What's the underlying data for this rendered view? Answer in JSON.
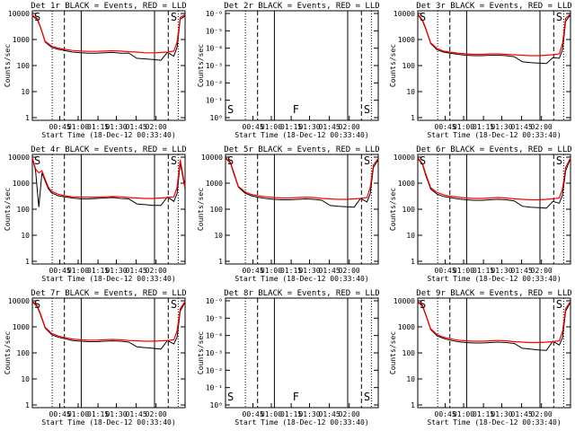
{
  "figure": {
    "xtick_labels": [
      "00:45",
      "01:00",
      "01:15",
      "01:30",
      "01:45",
      "02:00"
    ],
    "xlabel": "Start Time (18-Dec-12 00:33:40)",
    "ylabel": "Counts/sec",
    "colors": {
      "events": "#000000",
      "lld": "#ff0000",
      "axes": "#000000",
      "background": "#ffffff"
    }
  },
  "chart_data": [
    {
      "type": "line",
      "title": "Det 1r BLACK = Events, RED = LLD",
      "scale": "log",
      "ytick_labels": [
        "1",
        "10",
        "100",
        "1000",
        "10000"
      ],
      "ylim": [
        1,
        10000
      ],
      "x_minutes": [
        0,
        3,
        5,
        8,
        12,
        16,
        20,
        25,
        30,
        35,
        40,
        45,
        50,
        55,
        60,
        65,
        70,
        75,
        80,
        84,
        88,
        90,
        92,
        95
      ],
      "series": [
        {
          "name": "Events",
          "color": "#000000",
          "values": [
            8000,
            6000,
            3000,
            800,
            500,
            420,
            380,
            330,
            310,
            300,
            300,
            310,
            320,
            300,
            300,
            190,
            180,
            170,
            160,
            320,
            230,
            500,
            6000,
            8000
          ]
        },
        {
          "name": "LLD",
          "color": "#ff0000",
          "values": [
            8500,
            6500,
            3200,
            850,
            560,
            470,
            420,
            380,
            360,
            350,
            350,
            360,
            370,
            360,
            340,
            330,
            310,
            310,
            320,
            330,
            360,
            800,
            7000,
            9000
          ]
        }
      ],
      "markers": [
        {
          "label": "S",
          "pos": "left"
        },
        {
          "label": "S",
          "pos": "right"
        }
      ]
    },
    {
      "type": "line",
      "title": "Det 2r BLACK = Events, RED = LLD",
      "scale": "log",
      "ytick_labels": [
        "10⁰",
        "10⁻¹",
        "10⁻²",
        "10⁻³",
        "10⁻⁴",
        "10⁻⁵",
        "10⁻⁶"
      ],
      "ylim": [
        1e-06,
        1
      ],
      "x_minutes": [],
      "series": [],
      "markers": [
        {
          "label": "S",
          "pos": "left"
        },
        {
          "label": "F",
          "pos": "mid"
        },
        {
          "label": "S",
          "pos": "right"
        }
      ]
    },
    {
      "type": "line",
      "title": "Det 3r BLACK = Events, RED = LLD",
      "scale": "log",
      "ytick_labels": [
        "1",
        "10",
        "100",
        "1000",
        "10000"
      ],
      "ylim": [
        1,
        10000
      ],
      "x_minutes": [
        0,
        3,
        5,
        8,
        12,
        16,
        20,
        25,
        30,
        35,
        40,
        45,
        50,
        55,
        60,
        65,
        70,
        75,
        80,
        84,
        88,
        90,
        92,
        95
      ],
      "series": [
        {
          "name": "Events",
          "color": "#000000",
          "values": [
            9000,
            5000,
            2500,
            700,
            400,
            330,
            300,
            270,
            250,
            240,
            240,
            250,
            250,
            240,
            220,
            140,
            130,
            125,
            120,
            200,
            190,
            400,
            5000,
            9000
          ]
        },
        {
          "name": "LLD",
          "color": "#ff0000",
          "values": [
            9500,
            5500,
            2700,
            750,
            450,
            360,
            330,
            300,
            280,
            270,
            270,
            280,
            280,
            270,
            260,
            250,
            240,
            240,
            250,
            260,
            280,
            700,
            6500,
            9500
          ]
        }
      ],
      "markers": [
        {
          "label": "S",
          "pos": "left"
        },
        {
          "label": "S",
          "pos": "right"
        }
      ]
    },
    {
      "type": "line",
      "title": "Det 4r BLACK = Events, RED = LLD",
      "scale": "log",
      "ytick_labels": [
        "1",
        "10",
        "100",
        "1000",
        "10000"
      ],
      "ylim": [
        1,
        10000
      ],
      "x_minutes": [
        0,
        2,
        4,
        6,
        8,
        10,
        12,
        16,
        20,
        25,
        30,
        35,
        40,
        45,
        50,
        55,
        60,
        65,
        70,
        75,
        80,
        84,
        88,
        90,
        92,
        95
      ],
      "series": [
        {
          "name": "Events",
          "color": "#000000",
          "values": [
            9000,
            3000,
            120,
            2500,
            1200,
            600,
            420,
            330,
            300,
            270,
            250,
            250,
            260,
            270,
            280,
            260,
            250,
            160,
            150,
            140,
            140,
            300,
            200,
            400,
            6000,
            600
          ]
        },
        {
          "name": "LLD",
          "color": "#ff0000",
          "values": [
            9500,
            3500,
            2500,
            3000,
            1400,
            700,
            480,
            380,
            330,
            300,
            290,
            290,
            290,
            300,
            310,
            300,
            280,
            270,
            260,
            260,
            270,
            280,
            300,
            700,
            8000,
            700
          ]
        }
      ],
      "markers": [
        {
          "label": "S",
          "pos": "left"
        },
        {
          "label": "S",
          "pos": "right"
        }
      ]
    },
    {
      "type": "line",
      "title": "Det 5r BLACK = Events, RED = LLD",
      "scale": "log",
      "ytick_labels": [
        "1",
        "10",
        "100",
        "1000",
        "10000"
      ],
      "ylim": [
        1,
        10000
      ],
      "x_minutes": [
        0,
        3,
        5,
        8,
        12,
        16,
        20,
        25,
        30,
        35,
        40,
        45,
        50,
        55,
        60,
        65,
        70,
        75,
        80,
        84,
        88,
        90,
        92,
        95
      ],
      "series": [
        {
          "name": "Events",
          "color": "#000000",
          "values": [
            9000,
            6000,
            2500,
            700,
            420,
            330,
            290,
            260,
            240,
            230,
            230,
            240,
            250,
            240,
            220,
            140,
            130,
            125,
            120,
            260,
            190,
            400,
            4000,
            8000
          ]
        },
        {
          "name": "LLD",
          "color": "#ff0000",
          "values": [
            9500,
            6500,
            2800,
            750,
            470,
            370,
            330,
            300,
            280,
            270,
            270,
            280,
            290,
            280,
            260,
            250,
            240,
            240,
            250,
            260,
            280,
            700,
            5000,
            9000
          ]
        }
      ],
      "markers": [
        {
          "label": "S",
          "pos": "left"
        },
        {
          "label": "S",
          "pos": "right"
        }
      ]
    },
    {
      "type": "line",
      "title": "Det 6r BLACK = Events, RED = LLD",
      "scale": "log",
      "ytick_labels": [
        "1",
        "10",
        "100",
        "1000",
        "10000"
      ],
      "ylim": [
        1,
        10000
      ],
      "x_minutes": [
        0,
        3,
        5,
        8,
        12,
        16,
        20,
        25,
        30,
        35,
        40,
        45,
        50,
        55,
        60,
        65,
        70,
        75,
        80,
        84,
        88,
        90,
        92,
        95
      ],
      "series": [
        {
          "name": "Events",
          "color": "#000000",
          "values": [
            9000,
            5000,
            2000,
            600,
            380,
            310,
            280,
            250,
            230,
            220,
            220,
            230,
            240,
            230,
            210,
            130,
            120,
            115,
            110,
            200,
            170,
            350,
            3000,
            9000
          ]
        },
        {
          "name": "LLD",
          "color": "#ff0000",
          "values": [
            9500,
            5500,
            2300,
            680,
            440,
            360,
            320,
            290,
            270,
            260,
            260,
            270,
            280,
            270,
            250,
            240,
            230,
            230,
            240,
            250,
            270,
            600,
            4000,
            9500
          ]
        }
      ],
      "markers": [
        {
          "label": "S",
          "pos": "left"
        },
        {
          "label": "S",
          "pos": "right"
        }
      ]
    },
    {
      "type": "line",
      "title": "Det 7r BLACK = Events, RED = LLD",
      "scale": "log",
      "ytick_labels": [
        "1",
        "10",
        "100",
        "1000",
        "10000"
      ],
      "ylim": [
        1,
        10000
      ],
      "x_minutes": [
        0,
        3,
        5,
        8,
        12,
        16,
        20,
        25,
        30,
        35,
        40,
        45,
        50,
        55,
        60,
        65,
        70,
        75,
        80,
        84,
        88,
        90,
        92,
        95
      ],
      "series": [
        {
          "name": "Events",
          "color": "#000000",
          "values": [
            9000,
            6000,
            3000,
            900,
            500,
            400,
            350,
            300,
            280,
            270,
            270,
            280,
            290,
            280,
            260,
            170,
            160,
            150,
            140,
            300,
            220,
            400,
            4000,
            9000
          ]
        },
        {
          "name": "LLD",
          "color": "#ff0000",
          "values": [
            9500,
            6500,
            3300,
            950,
            560,
            450,
            390,
            340,
            320,
            310,
            310,
            320,
            330,
            320,
            300,
            290,
            280,
            280,
            290,
            300,
            320,
            700,
            5000,
            9500
          ]
        }
      ],
      "markers": [
        {
          "label": "S",
          "pos": "left"
        },
        {
          "label": "S",
          "pos": "right"
        }
      ]
    },
    {
      "type": "line",
      "title": "Det 8r BLACK = Events, RED = LLD",
      "scale": "log",
      "ytick_labels": [
        "10⁰",
        "10⁻¹",
        "10⁻²",
        "10⁻³",
        "10⁻⁴",
        "10⁻⁵",
        "10⁻⁶"
      ],
      "ylim": [
        1e-06,
        1
      ],
      "x_minutes": [],
      "series": [],
      "markers": [
        {
          "label": "S",
          "pos": "left"
        },
        {
          "label": "F",
          "pos": "mid"
        },
        {
          "label": "S",
          "pos": "right"
        }
      ]
    },
    {
      "type": "line",
      "title": "Det 9r BLACK = Events, RED = LLD",
      "scale": "log",
      "ytick_labels": [
        "1",
        "10",
        "100",
        "1000",
        "10000"
      ],
      "ylim": [
        1,
        10000
      ],
      "x_minutes": [
        0,
        3,
        5,
        8,
        12,
        16,
        20,
        25,
        30,
        35,
        40,
        45,
        50,
        55,
        60,
        65,
        70,
        75,
        80,
        84,
        88,
        90,
        92,
        95
      ],
      "series": [
        {
          "name": "Events",
          "color": "#000000",
          "values": [
            9000,
            6000,
            2800,
            800,
            450,
            360,
            310,
            270,
            250,
            240,
            240,
            250,
            260,
            250,
            230,
            150,
            140,
            130,
            125,
            280,
            200,
            380,
            4000,
            9000
          ]
        },
        {
          "name": "LLD",
          "color": "#ff0000",
          "values": [
            9500,
            6500,
            3000,
            850,
            500,
            400,
            350,
            310,
            290,
            280,
            280,
            290,
            300,
            290,
            270,
            260,
            250,
            250,
            260,
            270,
            290,
            650,
            5000,
            9500
          ]
        }
      ],
      "markers": [
        {
          "label": "S",
          "pos": "left"
        },
        {
          "label": "S",
          "pos": "right"
        }
      ]
    }
  ]
}
